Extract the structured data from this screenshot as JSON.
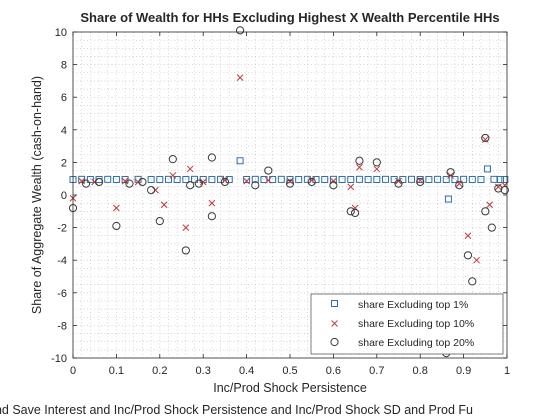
{
  "chart_data": {
    "type": "scatter",
    "title": "Share of Wealth for HHs Excluding Highest X Wealth Percentile HHs",
    "xlabel": "Inc/Prod Shock Persistence",
    "ylabel": "Share of Aggregate Wealth (cash-on-hand)",
    "caption": "and Save Interest and Inc/Prod Shock Persistence and Inc/Prod Shock SD and Prod Fu",
    "xlim": [
      0,
      1
    ],
    "ylim": [
      -10,
      10
    ],
    "xticks": [
      0,
      0.1,
      0.2,
      0.3,
      0.4,
      0.5,
      0.6,
      0.7,
      0.8,
      0.9,
      1
    ],
    "xtick_labels": [
      "0",
      "0.1",
      "0.2",
      "0.3",
      "0.4",
      "0.5",
      "0.6",
      "0.7",
      "0.8",
      "0.9",
      "1"
    ],
    "yticks": [
      -10,
      -8,
      -6,
      -4,
      -2,
      0,
      2,
      4,
      6,
      8,
      10
    ],
    "ytick_labels": [
      "-10",
      "-8",
      "-6",
      "-4",
      "-2",
      "0",
      "2",
      "4",
      "6",
      "8",
      "10"
    ],
    "grid": "minor dotted",
    "legend_position": "bottom-right",
    "colors": {
      "top1": "#2f6fa8",
      "top10": "#c0393b",
      "top20": "#3a3a3a"
    },
    "series": [
      {
        "name": "share Excluding top 1%",
        "marker": "square",
        "points": [
          [
            0.0,
            0.95
          ],
          [
            0.02,
            0.96
          ],
          [
            0.04,
            0.95
          ],
          [
            0.06,
            0.95
          ],
          [
            0.08,
            0.96
          ],
          [
            0.1,
            0.95
          ],
          [
            0.12,
            0.95
          ],
          [
            0.15,
            0.96
          ],
          [
            0.18,
            0.95
          ],
          [
            0.2,
            0.95
          ],
          [
            0.22,
            0.96
          ],
          [
            0.24,
            0.95
          ],
          [
            0.26,
            0.95
          ],
          [
            0.28,
            0.96
          ],
          [
            0.3,
            0.95
          ],
          [
            0.32,
            0.95
          ],
          [
            0.34,
            0.96
          ],
          [
            0.36,
            0.95
          ],
          [
            0.385,
            2.1
          ],
          [
            0.4,
            0.95
          ],
          [
            0.42,
            0.96
          ],
          [
            0.44,
            0.95
          ],
          [
            0.46,
            0.95
          ],
          [
            0.48,
            0.96
          ],
          [
            0.5,
            0.95
          ],
          [
            0.52,
            0.95
          ],
          [
            0.54,
            0.96
          ],
          [
            0.56,
            0.95
          ],
          [
            0.58,
            0.95
          ],
          [
            0.6,
            0.96
          ],
          [
            0.62,
            0.95
          ],
          [
            0.64,
            0.95
          ],
          [
            0.66,
            0.96
          ],
          [
            0.68,
            0.95
          ],
          [
            0.7,
            0.95
          ],
          [
            0.72,
            0.96
          ],
          [
            0.74,
            0.95
          ],
          [
            0.76,
            0.95
          ],
          [
            0.78,
            0.96
          ],
          [
            0.8,
            0.95
          ],
          [
            0.82,
            0.95
          ],
          [
            0.84,
            0.96
          ],
          [
            0.86,
            0.95
          ],
          [
            0.865,
            -0.25
          ],
          [
            0.88,
            0.95
          ],
          [
            0.9,
            0.96
          ],
          [
            0.92,
            0.95
          ],
          [
            0.94,
            0.95
          ],
          [
            0.955,
            1.6
          ],
          [
            0.97,
            0.96
          ],
          [
            0.985,
            0.95
          ],
          [
            0.995,
            0.95
          ]
        ]
      },
      {
        "name": "share Excluding top 10%",
        "marker": "x",
        "points": [
          [
            0.0,
            -0.2
          ],
          [
            0.02,
            0.85
          ],
          [
            0.05,
            0.8
          ],
          [
            0.1,
            -0.8
          ],
          [
            0.12,
            0.85
          ],
          [
            0.15,
            0.8
          ],
          [
            0.19,
            0.3
          ],
          [
            0.21,
            -0.6
          ],
          [
            0.23,
            1.2
          ],
          [
            0.26,
            -2.0
          ],
          [
            0.27,
            1.6
          ],
          [
            0.3,
            0.8
          ],
          [
            0.32,
            -0.5
          ],
          [
            0.35,
            0.9
          ],
          [
            0.385,
            7.2
          ],
          [
            0.4,
            0.85
          ],
          [
            0.45,
            0.9
          ],
          [
            0.5,
            0.85
          ],
          [
            0.55,
            0.9
          ],
          [
            0.6,
            0.85
          ],
          [
            0.64,
            0.5
          ],
          [
            0.65,
            -0.8
          ],
          [
            0.66,
            1.7
          ],
          [
            0.7,
            1.6
          ],
          [
            0.75,
            0.85
          ],
          [
            0.8,
            0.9
          ],
          [
            0.86,
            -6.6
          ],
          [
            0.87,
            1.2
          ],
          [
            0.89,
            0.7
          ],
          [
            0.91,
            -2.5
          ],
          [
            0.93,
            -4.0
          ],
          [
            0.95,
            3.4
          ],
          [
            0.96,
            -0.6
          ],
          [
            0.98,
            0.5
          ],
          [
            0.995,
            0.6
          ]
        ]
      },
      {
        "name": "share Excluding top 20%",
        "marker": "circle",
        "points": [
          [
            0.0,
            -0.8
          ],
          [
            0.03,
            0.7
          ],
          [
            0.06,
            0.8
          ],
          [
            0.1,
            -1.9
          ],
          [
            0.13,
            0.7
          ],
          [
            0.16,
            0.8
          ],
          [
            0.18,
            0.3
          ],
          [
            0.2,
            -1.6
          ],
          [
            0.23,
            2.2
          ],
          [
            0.26,
            -3.4
          ],
          [
            0.27,
            0.6
          ],
          [
            0.29,
            0.7
          ],
          [
            0.32,
            -1.3
          ],
          [
            0.32,
            2.3
          ],
          [
            0.35,
            0.8
          ],
          [
            0.385,
            10.1
          ],
          [
            0.42,
            0.6
          ],
          [
            0.45,
            1.5
          ],
          [
            0.5,
            0.7
          ],
          [
            0.55,
            0.8
          ],
          [
            0.6,
            0.6
          ],
          [
            0.64,
            -1.0
          ],
          [
            0.65,
            -1.1
          ],
          [
            0.66,
            2.1
          ],
          [
            0.7,
            2.0
          ],
          [
            0.75,
            0.7
          ],
          [
            0.8,
            0.8
          ],
          [
            0.86,
            -9.7
          ],
          [
            0.87,
            1.4
          ],
          [
            0.89,
            0.6
          ],
          [
            0.91,
            -3.7
          ],
          [
            0.92,
            -5.3
          ],
          [
            0.95,
            3.5
          ],
          [
            0.95,
            -1.0
          ],
          [
            0.965,
            -2.0
          ],
          [
            0.98,
            0.4
          ],
          [
            0.995,
            0.3
          ]
        ]
      }
    ]
  }
}
